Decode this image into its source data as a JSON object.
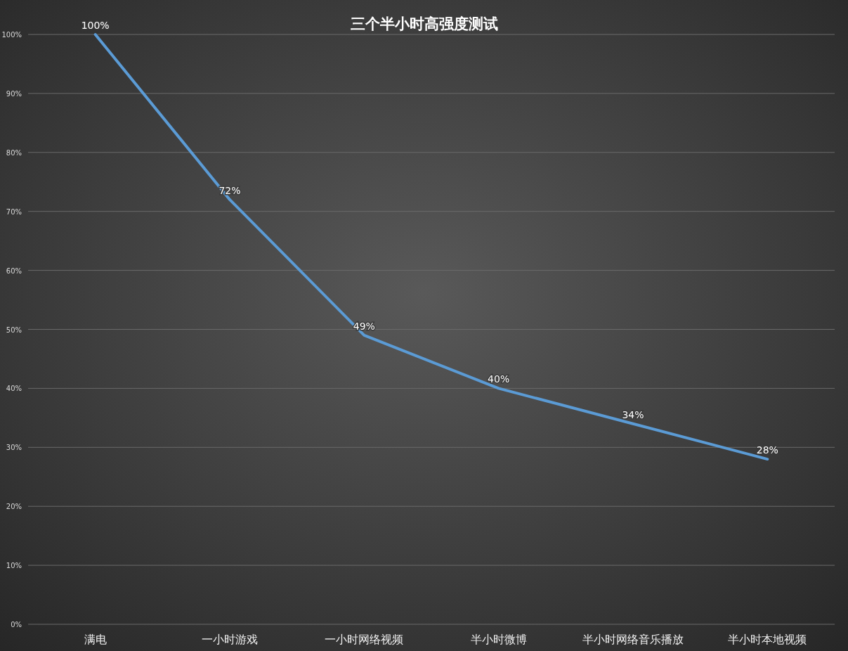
{
  "chart_data": {
    "type": "line",
    "title": "三个半小时高强度测试",
    "categories": [
      "满电",
      "一小时游戏",
      "一小时网络视频",
      "半小时微博",
      "半小时网络音乐播放",
      "半小时本地视频"
    ],
    "series": [
      {
        "color": "#5b9bd5",
        "values": [
          100,
          72,
          49,
          40,
          34,
          28
        ],
        "value_labels": [
          "100%",
          "72%",
          "49%",
          "40%",
          "34%",
          "28%"
        ]
      }
    ],
    "ylim": [
      0,
      100
    ],
    "yticks": [
      {
        "value": 0,
        "label": "0%"
      },
      {
        "value": 10,
        "label": "10%"
      },
      {
        "value": 20,
        "label": "20%"
      },
      {
        "value": 30,
        "label": "30%"
      },
      {
        "value": 40,
        "label": "40%"
      },
      {
        "value": 50,
        "label": "50%"
      },
      {
        "value": 60,
        "label": "60%"
      },
      {
        "value": 70,
        "label": "70%"
      },
      {
        "value": 80,
        "label": "80%"
      },
      {
        "value": 90,
        "label": "90%"
      },
      {
        "value": 100,
        "label": "100%"
      }
    ],
    "grid": "y",
    "marker": "none",
    "line_style": "solid"
  }
}
